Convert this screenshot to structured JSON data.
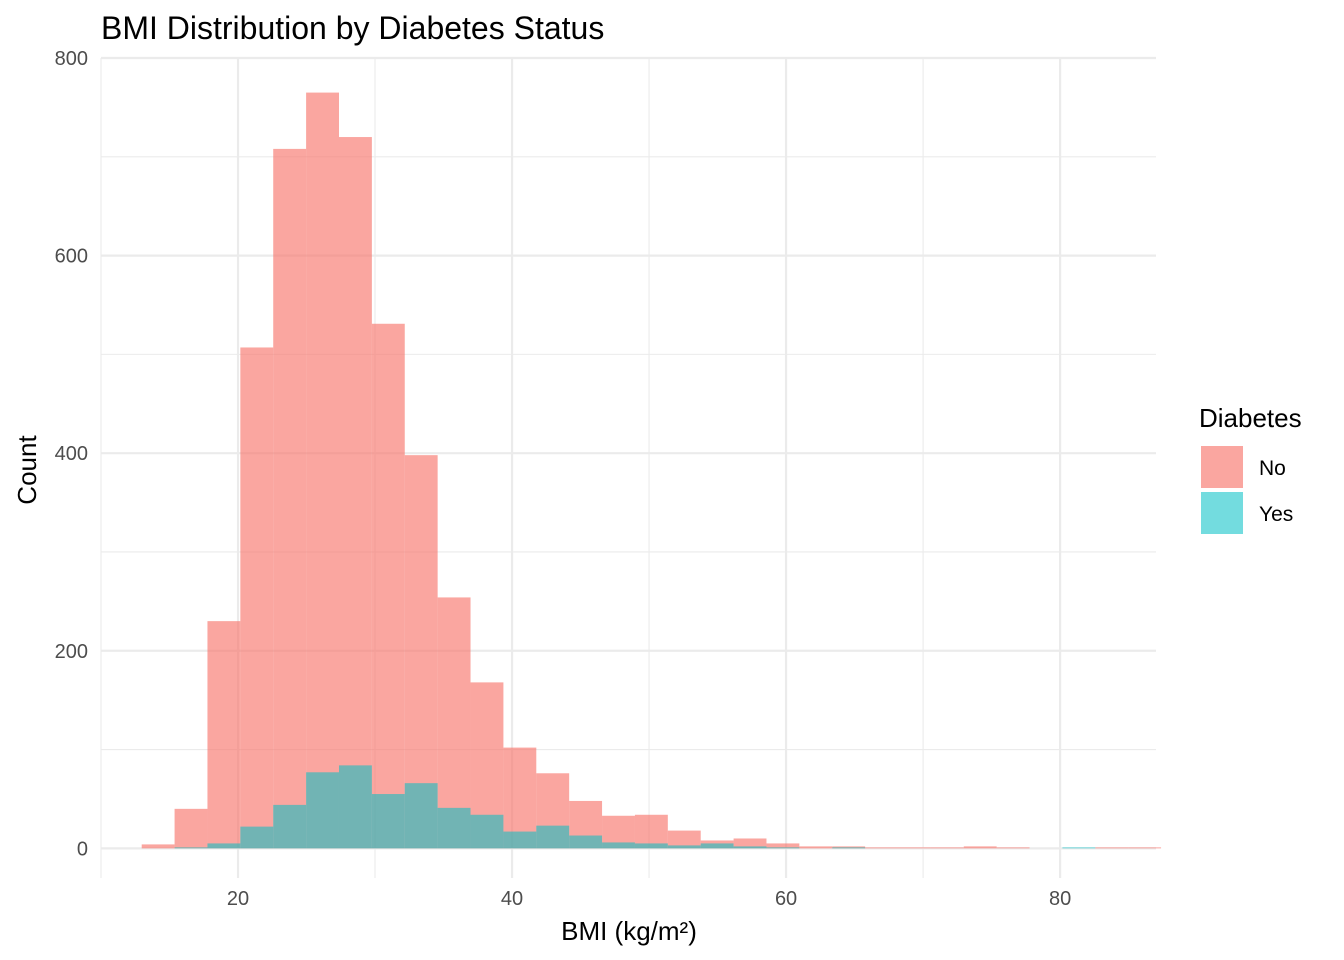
{
  "chart_data": {
    "type": "bar",
    "subtype": "overlaid-histogram",
    "title": "BMI Distribution by Diabetes Status",
    "xlabel": "BMI (kg/m²)",
    "ylabel": "Count",
    "xlim": [
      10,
      87
    ],
    "ylim": [
      -30,
      800
    ],
    "x_ticks": [
      20,
      40,
      60,
      80
    ],
    "y_ticks": [
      0,
      200,
      400,
      600,
      800
    ],
    "grid": true,
    "legend": {
      "title": "Diabetes",
      "position": "right"
    },
    "bins": {
      "start": 12.97,
      "width": 2.4
    },
    "series": [
      {
        "name": "No",
        "color": "#F8766D",
        "values": [
          4,
          40,
          230,
          507,
          708,
          765,
          720,
          531,
          398,
          254,
          168,
          102,
          76,
          48,
          33,
          34,
          18,
          8,
          10,
          5,
          2,
          2,
          1,
          1,
          1,
          2,
          1,
          0,
          0,
          1,
          1
        ]
      },
      {
        "name": "Yes",
        "color": "#00BFC4",
        "values": [
          0,
          1,
          5,
          22,
          44,
          77,
          84,
          55,
          66,
          41,
          34,
          17,
          23,
          13,
          6,
          5,
          3,
          5,
          2,
          1,
          0,
          1,
          0,
          0,
          0,
          0,
          0,
          0,
          1,
          0,
          0
        ]
      }
    ]
  }
}
